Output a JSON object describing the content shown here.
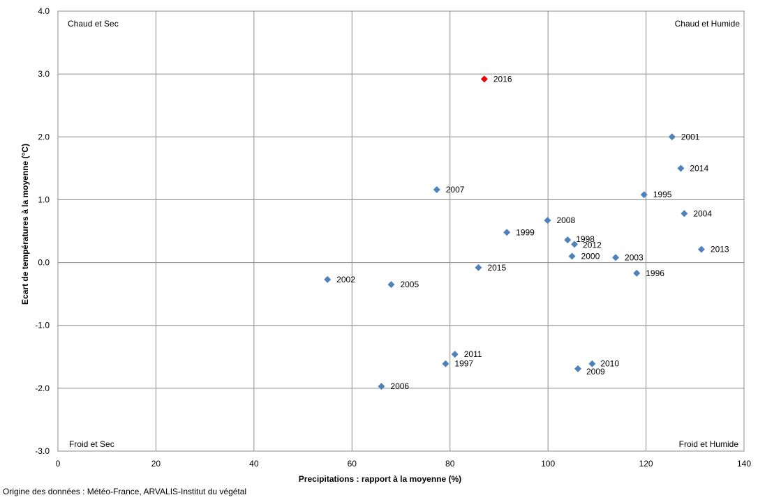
{
  "chart_data": {
    "type": "scatter",
    "xlabel": "Precipitations : rapport à la moyenne (%)",
    "ylabel": "Ecart de températures à la moyenne (°C)",
    "xlim": [
      0,
      140
    ],
    "ylim": [
      -3.0,
      4.0
    ],
    "x_ticks": [
      "0",
      "20",
      "40",
      "60",
      "80",
      "100",
      "120",
      "140"
    ],
    "y_ticks": [
      "4.0",
      "3.0",
      "2.0",
      "1.0",
      "0.0",
      "-1.0",
      "-2.0",
      "-3.0"
    ],
    "grid": true,
    "quadrant_labels": {
      "top_left": "Chaud et Sec",
      "top_right": "Chaud et Humide",
      "bottom_left": "Froid et Sec",
      "bottom_right": "Froid et Humide"
    },
    "marker_color": "#4f81bd",
    "highlight_color": "#e8000b",
    "points": [
      {
        "label": "2016",
        "x": 87.0,
        "y": 2.92,
        "highlight": true
      },
      {
        "label": "2001",
        "x": 125.3,
        "y": 2.0
      },
      {
        "label": "2014",
        "x": 127.1,
        "y": 1.5
      },
      {
        "label": "2007",
        "x": 77.3,
        "y": 1.16
      },
      {
        "label": "1995",
        "x": 119.6,
        "y": 1.08
      },
      {
        "label": "2004",
        "x": 127.8,
        "y": 0.78
      },
      {
        "label": "2008",
        "x": 99.9,
        "y": 0.67
      },
      {
        "label": "1999",
        "x": 91.6,
        "y": 0.48
      },
      {
        "label": "1998",
        "x": 104.0,
        "y": 0.36
      },
      {
        "label": "2012",
        "x": 105.4,
        "y": 0.29
      },
      {
        "label": "2013",
        "x": 131.3,
        "y": 0.21
      },
      {
        "label": "2000",
        "x": 104.9,
        "y": 0.1
      },
      {
        "label": "2003",
        "x": 113.8,
        "y": 0.08
      },
      {
        "label": "2015",
        "x": 85.8,
        "y": -0.08
      },
      {
        "label": "1996",
        "x": 118.1,
        "y": -0.17
      },
      {
        "label": "2002",
        "x": 55.0,
        "y": -0.27
      },
      {
        "label": "2005",
        "x": 68.0,
        "y": -0.35
      },
      {
        "label": "2011",
        "x": 81.0,
        "y": -1.46
      },
      {
        "label": "1997",
        "x": 79.1,
        "y": -1.61
      },
      {
        "label": "2010",
        "x": 109.0,
        "y": -1.61
      },
      {
        "label": "2009",
        "x": 106.1,
        "y": -1.69
      },
      {
        "label": "2006",
        "x": 66.0,
        "y": -1.97
      }
    ]
  },
  "source_note": "Origine des données : Météo-France, ARVALIS-Institut du végétal"
}
